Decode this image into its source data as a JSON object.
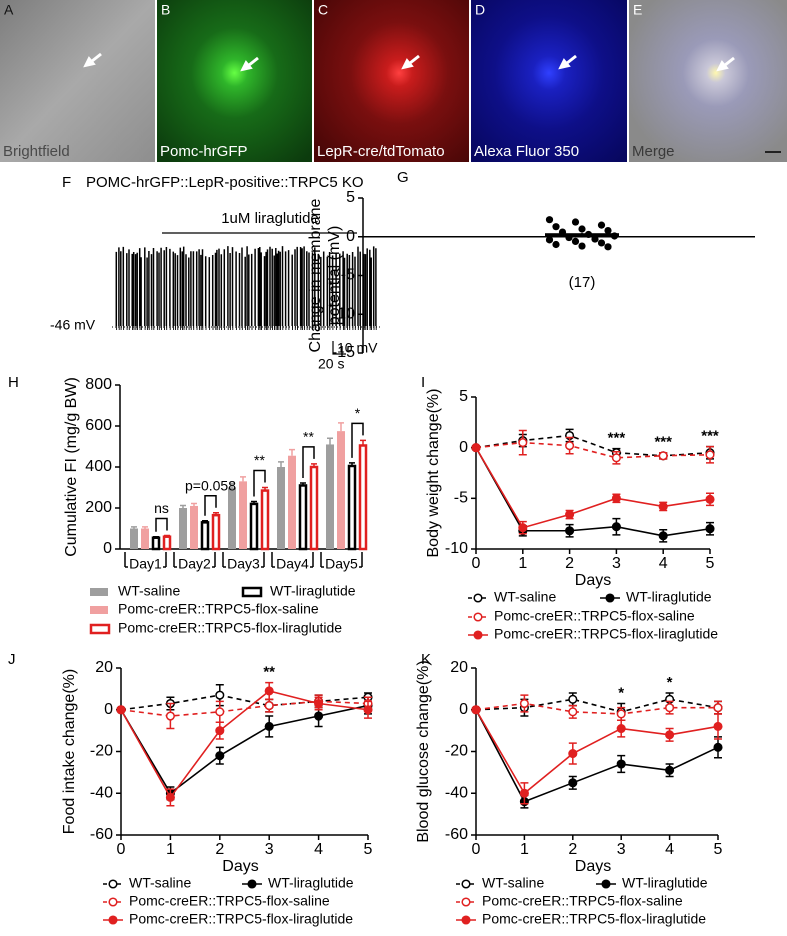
{
  "images": [
    {
      "letter": "A",
      "label": "Brightfield"
    },
    {
      "letter": "B",
      "label": "Pomc-hrGFP"
    },
    {
      "letter": "C",
      "label": "LepR-cre/tdTomato"
    },
    {
      "letter": "D",
      "label": "Alexa Fluor 350"
    },
    {
      "letter": "E",
      "label": "Merge"
    }
  ],
  "chart_data": [
    {
      "type": "trace",
      "panel": "F",
      "title": "POMC-hrGFP::LepR-positive::TRPC5 KO",
      "annotation": "1uM liraglutide",
      "baseline_label": "-46 mV",
      "scale_y_label": "10 mV",
      "scale_x_label": "20 s"
    },
    {
      "type": "strip",
      "panel": "G",
      "ylabel": [
        "Change in membrane",
        "potential (mV)"
      ],
      "ylim": [
        -15,
        5
      ],
      "yticks": [
        -15,
        -10,
        -5,
        0,
        5
      ],
      "annotation": "(17)",
      "color": "#000000",
      "values": [
        2.2,
        1.9,
        1.5,
        1.3,
        1.0,
        0.8,
        0.6,
        0.3,
        0.1,
        -0.1,
        -0.3,
        -0.4,
        -0.6,
        -0.8,
        -1.0,
        -1.2,
        -1.3
      ],
      "mean": 0.2,
      "error": 0.3
    },
    {
      "type": "bar",
      "panel": "H",
      "ylabel": "Cumulative FI (mg/g BW)",
      "ylim": [
        0,
        800
      ],
      "yticks": [
        0,
        200,
        400,
        600,
        800
      ],
      "categories": [
        "Day1",
        "Day2",
        "Day3",
        "Day4",
        "Day5"
      ],
      "series": [
        {
          "name": "WT-saline",
          "color": "#9e9e9e",
          "style": "solid",
          "values": [
            100,
            200,
            300,
            400,
            510
          ],
          "errors": [
            8,
            12,
            20,
            25,
            30
          ]
        },
        {
          "name": "Pomc-creER::TRPC5-flox-saline",
          "color": "#f0a0a0",
          "style": "solid",
          "values": [
            100,
            210,
            330,
            455,
            575
          ],
          "errors": [
            8,
            12,
            22,
            30,
            40
          ]
        },
        {
          "name": "WT-liraglutide",
          "color": "#000000",
          "style": "open",
          "values": [
            55,
            130,
            220,
            310,
            405
          ],
          "errors": [
            5,
            8,
            12,
            12,
            15
          ]
        },
        {
          "name": "Pomc-creER::TRPC5-flox-liraglutide",
          "color": "#e02020",
          "style": "open",
          "values": [
            60,
            165,
            285,
            400,
            505
          ],
          "errors": [
            6,
            12,
            15,
            15,
            25
          ]
        }
      ],
      "annotations": [
        {
          "x": "Day1",
          "text": "ns"
        },
        {
          "x": "Day2",
          "text": "p=0.058"
        },
        {
          "x": "Day3",
          "text": "**"
        },
        {
          "x": "Day4",
          "text": "**"
        },
        {
          "x": "Day5",
          "text": "*"
        }
      ]
    },
    {
      "type": "line",
      "panel": "I",
      "ylabel": "Body weight change(%)",
      "xlabel": "Days",
      "x": [
        0,
        1,
        2,
        3,
        4,
        5
      ],
      "xlim": [
        0,
        5
      ],
      "xticks": [
        0,
        1,
        2,
        3,
        4,
        5
      ],
      "ylim": [
        -10,
        5
      ],
      "yticks": [
        -10,
        -5,
        0,
        5
      ],
      "series": [
        {
          "name": "WT-saline",
          "color": "#000000",
          "dashed": true,
          "marker": "open",
          "values": [
            0,
            0.7,
            1.2,
            -0.5,
            -0.8,
            -0.5
          ],
          "errors": [
            0,
            0.6,
            0.6,
            0.4,
            0.3,
            0.6
          ]
        },
        {
          "name": "WT-liraglutide",
          "color": "#000000",
          "dashed": false,
          "marker": "filled",
          "values": [
            0,
            -8.2,
            -8.2,
            -7.8,
            -8.7,
            -8.0
          ],
          "errors": [
            0,
            0.5,
            0.6,
            0.8,
            0.6,
            0.6
          ]
        },
        {
          "name": "Pomc-creER::TRPC5-flox-saline",
          "color": "#e02020",
          "dashed": true,
          "marker": "open",
          "values": [
            0,
            0.5,
            0.2,
            -1.0,
            -0.8,
            -0.7
          ],
          "errors": [
            0,
            1.2,
            0.8,
            0.6,
            0.3,
            0.8
          ]
        },
        {
          "name": "Pomc-creER::TRPC5-flox-liraglutide",
          "color": "#e02020",
          "dashed": false,
          "marker": "filled",
          "values": [
            0,
            -7.9,
            -6.6,
            -5.0,
            -5.8,
            -5.1
          ],
          "errors": [
            0,
            0.6,
            0.4,
            0.4,
            0.4,
            0.6
          ]
        }
      ],
      "annotations": [
        {
          "x": 3,
          "text": "***"
        },
        {
          "x": 4,
          "text": "***"
        },
        {
          "x": 5,
          "text": "***"
        }
      ]
    },
    {
      "type": "line",
      "panel": "J",
      "ylabel": "Food intake change(%)",
      "xlabel": "Days",
      "x": [
        0,
        1,
        2,
        3,
        4,
        5
      ],
      "xlim": [
        0,
        5
      ],
      "xticks": [
        0,
        1,
        2,
        3,
        4,
        5
      ],
      "ylim": [
        -60,
        20
      ],
      "yticks": [
        -60,
        -40,
        -20,
        0,
        20
      ],
      "series": [
        {
          "name": "WT-saline",
          "color": "#000000",
          "dashed": true,
          "marker": "open",
          "values": [
            0,
            3,
            7,
            2,
            4,
            6
          ],
          "errors": [
            0,
            3,
            5,
            3,
            3,
            2
          ]
        },
        {
          "name": "WT-liraglutide",
          "color": "#000000",
          "dashed": false,
          "marker": "filled",
          "values": [
            0,
            -40,
            -22,
            -8,
            -3,
            2
          ],
          "errors": [
            0,
            3,
            4,
            5,
            5,
            4
          ]
        },
        {
          "name": "Pomc-creER::TRPC5-flox-saline",
          "color": "#e02020",
          "dashed": true,
          "marker": "open",
          "values": [
            0,
            -3,
            -1,
            2,
            4,
            3
          ],
          "errors": [
            0,
            6,
            5,
            3,
            3,
            3
          ]
        },
        {
          "name": "Pomc-creER::TRPC5-flox-liraglutide",
          "color": "#e02020",
          "dashed": false,
          "marker": "filled",
          "values": [
            0,
            -42,
            -10,
            9,
            3,
            0
          ],
          "errors": [
            0,
            4,
            4,
            4,
            3,
            4
          ]
        }
      ],
      "annotations": [
        {
          "x": 3,
          "text": "**"
        }
      ]
    },
    {
      "type": "line",
      "panel": "K",
      "ylabel": "Blood glucose change(%)",
      "xlabel": "Days",
      "x": [
        0,
        1,
        2,
        3,
        4,
        5
      ],
      "xlim": [
        0,
        5
      ],
      "xticks": [
        0,
        1,
        2,
        3,
        4,
        5
      ],
      "ylim": [
        -60,
        20
      ],
      "yticks": [
        -60,
        -40,
        -20,
        0,
        20
      ],
      "series": [
        {
          "name": "WT-saline",
          "color": "#000000",
          "dashed": true,
          "marker": "open",
          "values": [
            0,
            1,
            5,
            -1,
            5,
            1
          ],
          "errors": [
            0,
            4,
            3,
            4,
            3,
            3
          ]
        },
        {
          "name": "WT-liraglutide",
          "color": "#000000",
          "dashed": false,
          "marker": "filled",
          "values": [
            0,
            -44,
            -35,
            -26,
            -29,
            -18
          ],
          "errors": [
            0,
            3,
            3,
            4,
            3,
            5
          ]
        },
        {
          "name": "Pomc-creER::TRPC5-flox-saline",
          "color": "#e02020",
          "dashed": true,
          "marker": "open",
          "values": [
            0,
            3,
            -1,
            -2,
            1,
            1
          ],
          "errors": [
            0,
            4,
            3,
            3,
            3,
            3
          ]
        },
        {
          "name": "Pomc-creER::TRPC5-flox-liraglutide",
          "color": "#e02020",
          "dashed": false,
          "marker": "filled",
          "values": [
            0,
            -40,
            -21,
            -9,
            -12,
            -8
          ],
          "errors": [
            0,
            5,
            5,
            4,
            3,
            6
          ]
        }
      ],
      "annotations": [
        {
          "x": 3,
          "text": "*"
        },
        {
          "x": 4,
          "text": "*"
        }
      ]
    }
  ]
}
